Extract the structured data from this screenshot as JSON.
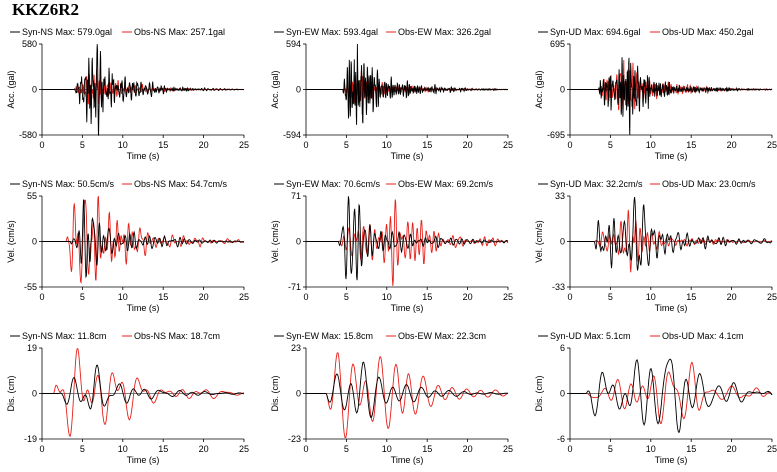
{
  "station": "KKZ6R2",
  "colors": {
    "syn": "#000000",
    "obs": "#e8201a"
  },
  "chart_data": [
    {
      "type": "line",
      "quantity": "acc",
      "component": "NS",
      "ylabel": "Acc. (gal)",
      "xlabel": "Time (s)",
      "ylim": [
        -580,
        580
      ],
      "ytick_labels": [
        "580",
        "0",
        "-580"
      ],
      "xlim": [
        0,
        25
      ],
      "xticks": [
        0,
        5,
        10,
        15,
        20,
        25
      ],
      "series": [
        {
          "name": "Syn-NS",
          "max_label": "Max: 579.0gal",
          "peak": 579.0,
          "shape": "acc",
          "seed": 11,
          "t0": 4.0,
          "tp": 6.6
        },
        {
          "name": "Obs-NS",
          "max_label": "Max: 257.1gal",
          "peak": 257.1,
          "shape": "acc",
          "seed": 12,
          "t0": 4.0,
          "tp": 6.8
        }
      ]
    },
    {
      "type": "line",
      "quantity": "acc",
      "component": "EW",
      "ylabel": "Acc. (gal)",
      "xlabel": "Time (s)",
      "ylim": [
        -594,
        594
      ],
      "ytick_labels": [
        "594",
        "0",
        "-594"
      ],
      "xlim": [
        0,
        25
      ],
      "xticks": [
        0,
        5,
        10,
        15,
        20,
        25
      ],
      "series": [
        {
          "name": "Syn-EW",
          "max_label": "Max: 593.4gal",
          "peak": 593.4,
          "shape": "acc",
          "seed": 21,
          "t0": 4.5,
          "tp": 6.4
        },
        {
          "name": "Obs-EW",
          "max_label": "Max: 326.2gal",
          "peak": 326.2,
          "shape": "acc",
          "seed": 22,
          "t0": 4.5,
          "tp": 6.6
        }
      ]
    },
    {
      "type": "line",
      "quantity": "acc",
      "component": "UD",
      "ylabel": "Acc. (gal)",
      "xlabel": "Time (s)",
      "ylim": [
        -695,
        695
      ],
      "ytick_labels": [
        "695",
        "0",
        "-695"
      ],
      "xlim": [
        0,
        25
      ],
      "xticks": [
        0,
        5,
        10,
        15,
        20,
        25
      ],
      "series": [
        {
          "name": "Syn-UD",
          "max_label": "Max: 694.6gal",
          "peak": 694.6,
          "shape": "acc",
          "seed": 31,
          "t0": 3.5,
          "tp": 7.5
        },
        {
          "name": "Obs-UD",
          "max_label": "Max: 450.2gal",
          "peak": 450.2,
          "shape": "acc",
          "seed": 32,
          "t0": 3.5,
          "tp": 7.2
        }
      ]
    },
    {
      "type": "line",
      "quantity": "vel",
      "component": "NS",
      "ylabel": "Vel. (cm/s)",
      "xlabel": "Time (s)",
      "ylim": [
        -55,
        55
      ],
      "ytick_labels": [
        "55",
        "0",
        "-55"
      ],
      "xlim": [
        0,
        25
      ],
      "xticks": [
        0,
        5,
        10,
        15,
        20,
        25
      ],
      "series": [
        {
          "name": "Syn-NS",
          "max_label": "Max: 50.5cm/s",
          "peak": 50.5,
          "shape": "vel",
          "seed": 41,
          "t0": 3.5,
          "tp": 6.0
        },
        {
          "name": "Obs-NS",
          "max_label": "Max: 54.7cm/s",
          "peak": 54.7,
          "shape": "vel",
          "seed": 42,
          "t0": 3.0,
          "tp": 5.7
        }
      ]
    },
    {
      "type": "line",
      "quantity": "vel",
      "component": "EW",
      "ylabel": "Vel. (cm/s)",
      "xlabel": "Time (s)",
      "ylim": [
        -71,
        71
      ],
      "ytick_labels": [
        "71",
        "0",
        "-71"
      ],
      "xlim": [
        0,
        25
      ],
      "xticks": [
        0,
        5,
        10,
        15,
        20,
        25
      ],
      "series": [
        {
          "name": "Syn-EW",
          "max_label": "Max: 70.6cm/s",
          "peak": 70.6,
          "shape": "vel",
          "seed": 51,
          "t0": 4.0,
          "tp": 6.1
        },
        {
          "name": "Obs-EW",
          "max_label": "Max: 69.2cm/s",
          "peak": 69.2,
          "shape": "vel",
          "seed": 52,
          "t0": 4.0,
          "tp": 12.0
        }
      ]
    },
    {
      "type": "line",
      "quantity": "vel",
      "component": "UD",
      "ylabel": "Vel. (cm/s)",
      "xlabel": "Time (s)",
      "ylim": [
        -33,
        33
      ],
      "ytick_labels": [
        "33",
        "0",
        "-33"
      ],
      "xlim": [
        0,
        25
      ],
      "xticks": [
        0,
        5,
        10,
        15,
        20,
        25
      ],
      "series": [
        {
          "name": "Syn-UD",
          "max_label": "Max: 32.2cm/s",
          "peak": 32.2,
          "shape": "vel",
          "seed": 61,
          "t0": 3.0,
          "tp": 8.3
        },
        {
          "name": "Obs-UD",
          "max_label": "Max: 23.0cm/s",
          "peak": 23.0,
          "shape": "vel",
          "seed": 62,
          "t0": 3.0,
          "tp": 7.8
        }
      ]
    },
    {
      "type": "line",
      "quantity": "dis",
      "component": "NS",
      "ylabel": "Dis. (cm)",
      "xlabel": "Time (s)",
      "ylim": [
        -19,
        19
      ],
      "ytick_labels": [
        "19",
        "0",
        "-19"
      ],
      "xlim": [
        0,
        25
      ],
      "xticks": [
        0,
        5,
        10,
        15,
        20,
        25
      ],
      "series": [
        {
          "name": "Syn-NS",
          "max_label": "Max: 11.8cm",
          "peak": 11.8,
          "shape": "dis",
          "seed": 71,
          "t0": 2.0,
          "tp": 6.5
        },
        {
          "name": "Obs-NS",
          "max_label": "Max: 18.7cm",
          "peak": 18.7,
          "shape": "dis",
          "seed": 72,
          "t0": 1.5,
          "tp": 5.3
        }
      ]
    },
    {
      "type": "line",
      "quantity": "dis",
      "component": "EW",
      "ylabel": "Dis. (cm)",
      "xlabel": "Time (s)",
      "ylim": [
        -23,
        23
      ],
      "ytick_labels": [
        "23",
        "0",
        "-23"
      ],
      "xlim": [
        0,
        25
      ],
      "xticks": [
        0,
        5,
        10,
        15,
        20,
        25
      ],
      "series": [
        {
          "name": "Syn-EW",
          "max_label": "Max: 15.8cm",
          "peak": 15.8,
          "shape": "dis",
          "seed": 81,
          "t0": 2.5,
          "tp": 6.5
        },
        {
          "name": "Obs-EW",
          "max_label": "Max: 22.3cm",
          "peak": 22.3,
          "shape": "dis",
          "seed": 82,
          "t0": 2.5,
          "tp": 12.2
        }
      ]
    },
    {
      "type": "line",
      "quantity": "dis",
      "component": "UD",
      "ylabel": "Dis. (cm)",
      "xlabel": "Time (s)",
      "ylim": [
        -6,
        6
      ],
      "ytick_labels": [
        "6",
        "0",
        "-6"
      ],
      "xlim": [
        0,
        25
      ],
      "xticks": [
        0,
        5,
        10,
        15,
        20,
        25
      ],
      "series": [
        {
          "name": "Syn-UD",
          "max_label": "Max: 5.1cm",
          "peak": 5.1,
          "shape": "dis",
          "seed": 91,
          "t0": 2.0,
          "tp": 12.8
        },
        {
          "name": "Obs-UD",
          "max_label": "Max: 4.1cm",
          "peak": 4.1,
          "shape": "dis",
          "seed": 92,
          "t0": 2.0,
          "tp": 16.0
        }
      ]
    }
  ]
}
